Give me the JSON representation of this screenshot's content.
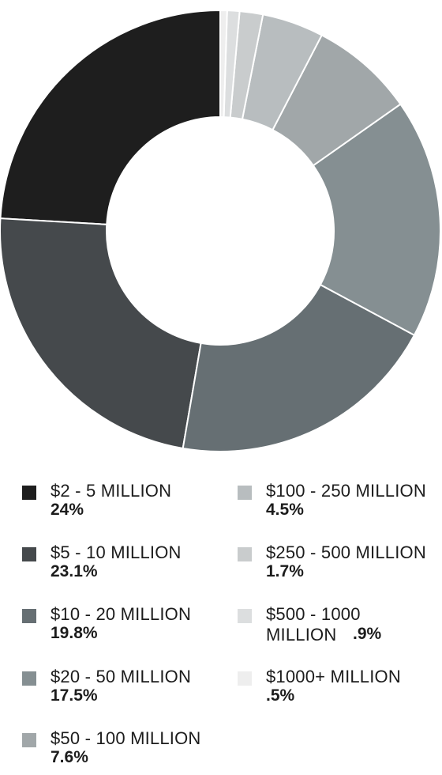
{
  "chart_data": {
    "type": "pie",
    "variant": "donut",
    "categories": [
      "$2 - 5 MILLION",
      "$5 - 10 MILLION",
      "$10 - 20 MILLION",
      "$20 - 50 MILLION",
      "$50 - 100 MILLION",
      "$100 - 250 MILLION",
      "$250 - 500 MILLION",
      "$500 - 1000 MILLION",
      "$1000+ MILLION"
    ],
    "values": [
      24,
      23.1,
      19.8,
      17.5,
      7.6,
      4.5,
      1.7,
      0.9,
      0.5
    ],
    "value_labels": [
      "24%",
      "23.1%",
      "19.8%",
      "17.5%",
      "7.6%",
      "4.5%",
      "1.7%",
      ".9%",
      ".5%"
    ],
    "colors": [
      "#1e1e1e",
      "#45494c",
      "#666f73",
      "#858f92",
      "#a1a7a9",
      "#b8bdbf",
      "#c9cccd",
      "#dcdedf",
      "#eeeeee"
    ],
    "legend_placement": "bottom"
  },
  "legend": [
    {
      "label": "$2 - 5 MILLION",
      "value": "24%"
    },
    {
      "label": "$5 - 10 MILLION",
      "value": "23.1%"
    },
    {
      "label": "$10 - 20 MILLION",
      "value": "19.8%"
    },
    {
      "label": "$20 - 50 MILLION",
      "value": "17.5%"
    },
    {
      "label": "$50 - 100 MILLION",
      "value": "7.6%"
    },
    {
      "label": "$100 - 250 MILLION",
      "value": "4.5%"
    },
    {
      "label": "$250 - 500 MILLION",
      "value": "1.7%"
    },
    {
      "label_line1": "$500 - 1000",
      "label_line2": "MILLION",
      "value": ".9%"
    },
    {
      "label": "$1000+ MILLION",
      "value": ".5%"
    }
  ]
}
